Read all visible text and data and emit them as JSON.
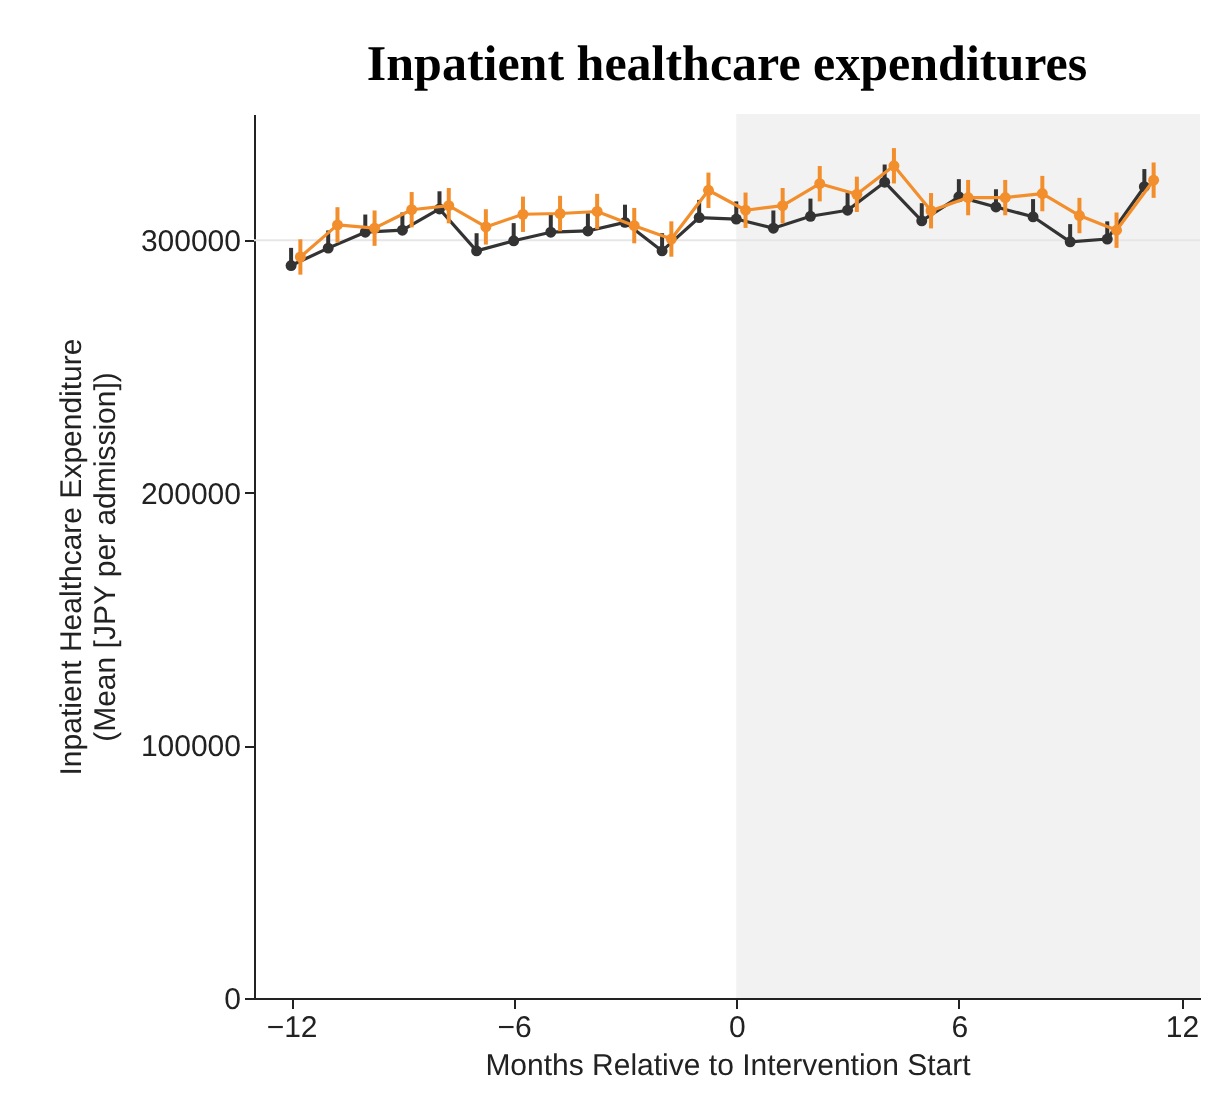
{
  "chart_data": {
    "type": "line",
    "title": "Inpatient healthcare expenditures",
    "xlabel": "Months Relative to Intervention Start",
    "ylabel": "Inpatient Healthcare Expenditure\n(Mean [JPY per admission])",
    "x": [
      -12,
      -11,
      -10,
      -9,
      -8,
      -7,
      -6,
      -5,
      -4,
      -3,
      -2,
      -1,
      0,
      1,
      2,
      3,
      4,
      5,
      6,
      7,
      8,
      9,
      10,
      11
    ],
    "series": [
      {
        "color": "#333333",
        "values": [
          290000,
          296900,
          303200,
          304000,
          312400,
          295800,
          299800,
          303200,
          303700,
          307100,
          295800,
          309000,
          308400,
          304800,
          309500,
          311900,
          323000,
          307700,
          317200,
          313200,
          309300,
          299400,
          300500,
          321200
        ],
        "errors": [
          7000,
          7000,
          7000,
          7000,
          7000,
          7000,
          7000,
          7000,
          7000,
          7000,
          7000,
          7000,
          7000,
          7000,
          7000,
          7000,
          7000,
          7000,
          7000,
          7000,
          7000,
          7000,
          7000,
          7000
        ]
      },
      {
        "color": "#f28e2b",
        "x": [
          -11.75,
          -10.75,
          -9.75,
          -8.75,
          -7.75,
          -6.75,
          -5.75,
          -4.75,
          -3.75,
          -2.75,
          -1.75,
          -0.75,
          0.25,
          1.25,
          2.25,
          3.25,
          4.25,
          5.25,
          6.25,
          7.25,
          8.25,
          9.25,
          10.25,
          11.25
        ],
        "values": [
          293400,
          306100,
          304800,
          312100,
          313700,
          305300,
          310300,
          310600,
          311400,
          305800,
          300500,
          319800,
          311900,
          313700,
          322400,
          318200,
          329500,
          311700,
          316900,
          316900,
          318500,
          309800,
          304000,
          323800
        ],
        "errors": [
          7000,
          7000,
          7000,
          7000,
          7000,
          7000,
          7000,
          7000,
          7000,
          7000,
          7000,
          7000,
          7000,
          7000,
          7000,
          7000,
          7000,
          7000,
          7000,
          7000,
          7000,
          7000,
          7000,
          7000
        ]
      }
    ],
    "xlim": [
      -13,
      12.5
    ],
    "xticks": [
      -12,
      -6,
      0,
      6,
      12
    ],
    "ylim": [
      0,
      350000
    ],
    "yticks": [
      0,
      100000,
      200000,
      300000
    ],
    "bands": [
      {
        "axis": "x",
        "from": 0,
        "to": 12.5,
        "color": "#f2f2f2"
      }
    ],
    "ref_lines": [
      {
        "axis": "y",
        "value": 300000,
        "color": "#e6e6e6"
      }
    ],
    "marker": "circle",
    "grid": false
  }
}
